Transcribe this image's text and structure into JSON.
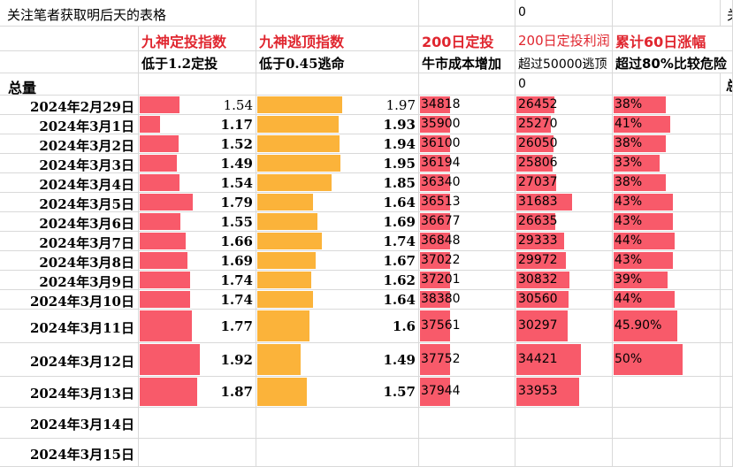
{
  "top_row": {
    "title": "关注笔者获取明后天的表格",
    "zero": "0",
    "edge": "关"
  },
  "headers": {
    "col_b": "九神定投指数",
    "col_c": "九神逃顶指数",
    "col_d": "200日定投",
    "col_e": "200日定投利润",
    "col_f": "累计60日涨幅"
  },
  "subheaders": {
    "col_b": "低于1.2定投",
    "col_c": "低于0.45逃命",
    "col_d": "牛市成本增加",
    "col_e": "超过50000逃顶",
    "col_f": "超过80%比较危险"
  },
  "total_row": {
    "label": "总量",
    "zero": "0",
    "edge": "总"
  },
  "colors": {
    "red_bar": "#f85a6a",
    "orange_bar": "#fbb33a",
    "header_red": "#e0262f"
  },
  "rows": [
    {
      "date": "2024年2月29日",
      "dingtou": "1.54",
      "taoding": "1.97",
      "ma200": "34818",
      "profit": "26452",
      "rise60": "38%"
    },
    {
      "date": "2024年3月1日",
      "dingtou": "1.17",
      "taoding": "1.93",
      "ma200": "35900",
      "profit": "25270",
      "rise60": "41%"
    },
    {
      "date": "2024年3月2日",
      "dingtou": "1.52",
      "taoding": "1.94",
      "ma200": "36100",
      "profit": "26050",
      "rise60": "38%"
    },
    {
      "date": "2024年3月3日",
      "dingtou": "1.49",
      "taoding": "1.95",
      "ma200": "36194",
      "profit": "25806",
      "rise60": "33%"
    },
    {
      "date": "2024年3月4日",
      "dingtou": "1.54",
      "taoding": "1.85",
      "ma200": "36340",
      "profit": "27037",
      "rise60": "38%"
    },
    {
      "date": "2024年3月5日",
      "dingtou": "1.79",
      "taoding": "1.64",
      "ma200": "36513",
      "profit": "31683",
      "rise60": "43%"
    },
    {
      "date": "2024年3月6日",
      "dingtou": "1.55",
      "taoding": "1.69",
      "ma200": "36677",
      "profit": "26635",
      "rise60": "43%"
    },
    {
      "date": "2024年3月7日",
      "dingtou": "1.66",
      "taoding": "1.74",
      "ma200": "36848",
      "profit": "29333",
      "rise60": "44%"
    },
    {
      "date": "2024年3月8日",
      "dingtou": "1.69",
      "taoding": "1.67",
      "ma200": "37022",
      "profit": "29972",
      "rise60": "43%"
    },
    {
      "date": "2024年3月9日",
      "dingtou": "1.74",
      "taoding": "1.62",
      "ma200": "37201",
      "profit": "30832",
      "rise60": "39%"
    },
    {
      "date": "2024年3月10日",
      "dingtou": "1.74",
      "taoding": "1.64",
      "ma200": "38380",
      "profit": "30560",
      "rise60": "44%"
    },
    {
      "date": "2024年3月11日",
      "dingtou": "1.77",
      "taoding": "1.6",
      "ma200": "37561",
      "profit": "30297",
      "rise60": "45.90%"
    },
    {
      "date": "2024年3月12日",
      "dingtou": "1.92",
      "taoding": "1.49",
      "ma200": "37752",
      "profit": "34421",
      "rise60": "50%"
    },
    {
      "date": "2024年3月13日",
      "dingtou": "1.87",
      "taoding": "1.57",
      "ma200": "37944",
      "profit": "33953",
      "rise60": ""
    },
    {
      "date": "2024年3月14日",
      "dingtou": "",
      "taoding": "",
      "ma200": "",
      "profit": "",
      "rise60": ""
    },
    {
      "date": "2024年3月15日",
      "dingtou": "",
      "taoding": "",
      "ma200": "",
      "profit": "",
      "rise60": ""
    }
  ]
}
